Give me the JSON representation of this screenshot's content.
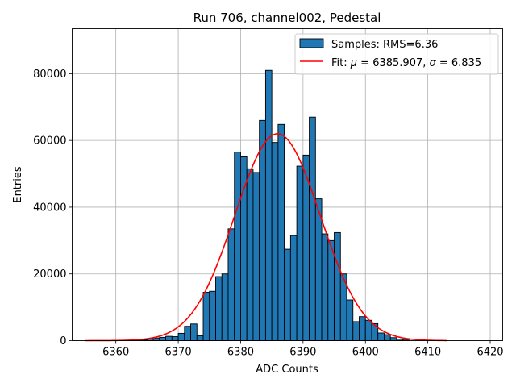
{
  "chart_data": {
    "type": "bar",
    "title": "Run 706, channel002, Pedestal",
    "xlabel": "ADC Counts",
    "ylabel": "Entries",
    "xlim": [
      6353,
      6422
    ],
    "ylim": [
      0,
      93500
    ],
    "xticks": [
      6360,
      6370,
      6380,
      6390,
      6400,
      6410,
      6420
    ],
    "yticks": [
      0,
      20000,
      40000,
      60000,
      80000
    ],
    "grid": true,
    "legend_position": "top-right",
    "bin_width": 1,
    "histogram": {
      "name": "Samples: RMS=6.36",
      "color": "#1f77b4",
      "bin_start": [
        6362,
        6363,
        6364,
        6365,
        6366,
        6367,
        6368,
        6369,
        6370,
        6371,
        6372,
        6373,
        6374,
        6375,
        6376,
        6377,
        6378,
        6379,
        6380,
        6381,
        6382,
        6383,
        6384,
        6385,
        6386,
        6387,
        6388,
        6389,
        6390,
        6391,
        6392,
        6393,
        6394,
        6395,
        6396,
        6397,
        6398,
        6399,
        6400,
        6401,
        6402,
        6403,
        6404,
        6405,
        6406
      ],
      "counts": [
        100,
        150,
        250,
        600,
        800,
        1000,
        1300,
        1200,
        2200,
        4300,
        5000,
        1500,
        14500,
        14800,
        19200,
        20000,
        33500,
        56500,
        55100,
        51500,
        50400,
        66000,
        81000,
        59400,
        64800,
        27400,
        31500,
        52300,
        55600,
        67000,
        42500,
        32000,
        30000,
        32400,
        20000,
        12200,
        5700,
        7200,
        6100,
        5100,
        2300,
        1800,
        900,
        500,
        200
      ]
    },
    "fit": {
      "name_parts": [
        "Fit: ",
        "μ",
        " = 6385.907, ",
        "σ",
        " = 6.835"
      ],
      "color": "#ff0000",
      "mu": 6385.907,
      "sigma": 6.835,
      "amplitude": 62000,
      "x_range": [
        6355,
        6413
      ]
    }
  }
}
